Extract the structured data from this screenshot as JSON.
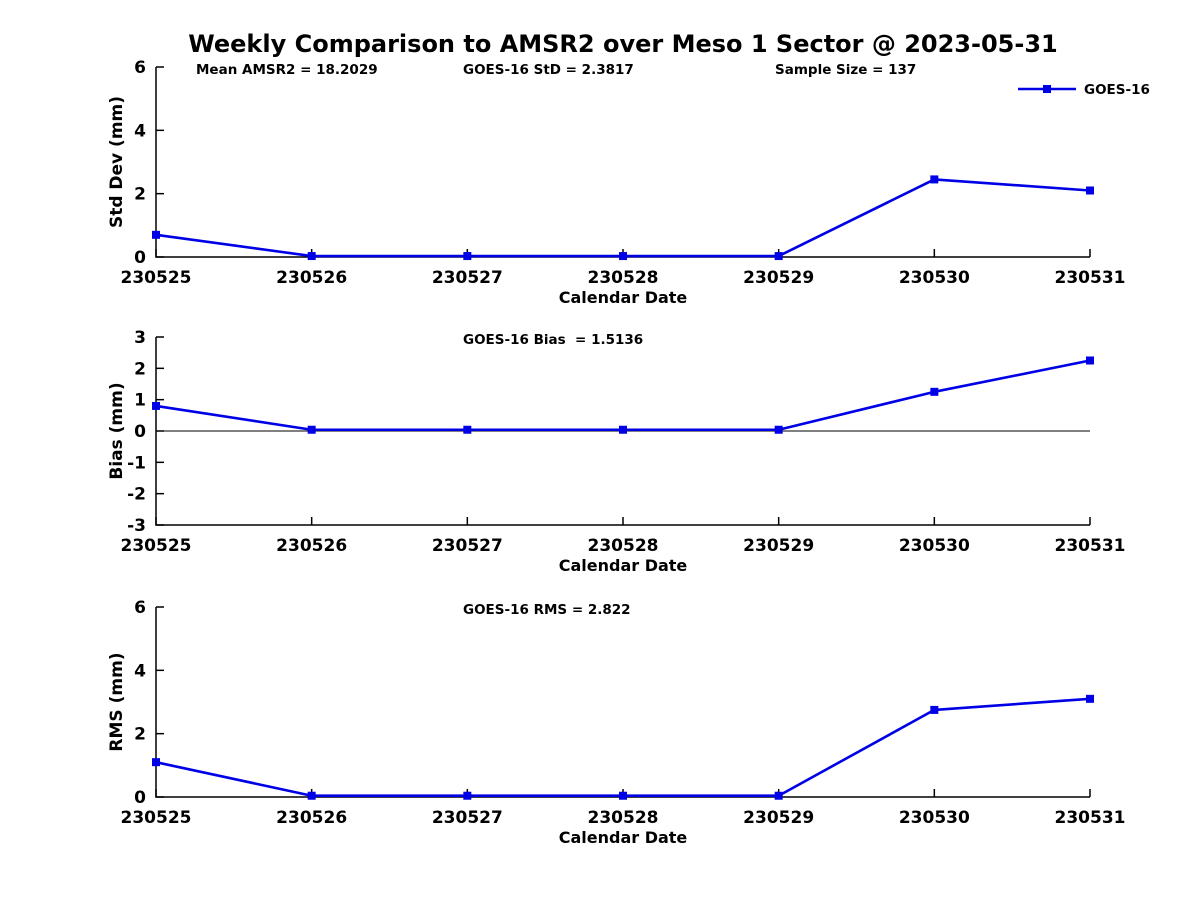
{
  "figure_title": "Weekly Comparison to AMSR2 over Meso 1 Sector @ 2023-05-31",
  "legend": {
    "label": "GOES-16"
  },
  "colors": {
    "line": "#0000E6",
    "axis": "#000000",
    "text": "#000000",
    "background": "#FFFFFF"
  },
  "chart_data": [
    {
      "type": "line",
      "title": "",
      "annotations": [
        "Mean AMSR2 = 18.2029",
        "GOES-16 StD = 2.3817",
        "Sample Size = 137"
      ],
      "categories": [
        "230525",
        "230526",
        "230527",
        "230528",
        "230529",
        "230530",
        "230531"
      ],
      "series": [
        {
          "name": "GOES-16",
          "values": [
            0.7,
            0.03,
            0.03,
            0.03,
            0.03,
            2.45,
            2.1
          ]
        }
      ],
      "xlabel": "Calendar Date",
      "ylabel": "Std Dev (mm)",
      "ylim": [
        0,
        6
      ],
      "yticks": [
        0,
        2,
        4,
        6
      ],
      "zero_line": false,
      "grid": false,
      "show_legend": true,
      "legend_position": "top-right"
    },
    {
      "type": "line",
      "title": "",
      "annotations": [
        "GOES-16 Bias  = 1.5136"
      ],
      "categories": [
        "230525",
        "230526",
        "230527",
        "230528",
        "230529",
        "230530",
        "230531"
      ],
      "series": [
        {
          "name": "GOES-16",
          "values": [
            0.8,
            0.04,
            0.04,
            0.04,
            0.04,
            1.25,
            2.25
          ]
        }
      ],
      "xlabel": "Calendar Date",
      "ylabel": "Bias (mm)",
      "ylim": [
        -3,
        3
      ],
      "yticks": [
        -3,
        -2,
        -1,
        0,
        1,
        2,
        3
      ],
      "zero_line": true,
      "grid": false,
      "show_legend": false
    },
    {
      "type": "line",
      "title": "",
      "annotations": [
        "GOES-16 RMS = 2.822"
      ],
      "categories": [
        "230525",
        "230526",
        "230527",
        "230528",
        "230529",
        "230530",
        "230531"
      ],
      "series": [
        {
          "name": "GOES-16",
          "values": [
            1.1,
            0.04,
            0.04,
            0.04,
            0.04,
            2.75,
            3.1
          ]
        }
      ],
      "xlabel": "Calendar Date",
      "ylabel": "RMS (mm)",
      "ylim": [
        0,
        6
      ],
      "yticks": [
        0,
        2,
        4,
        6
      ],
      "zero_line": false,
      "grid": false,
      "show_legend": false
    }
  ]
}
